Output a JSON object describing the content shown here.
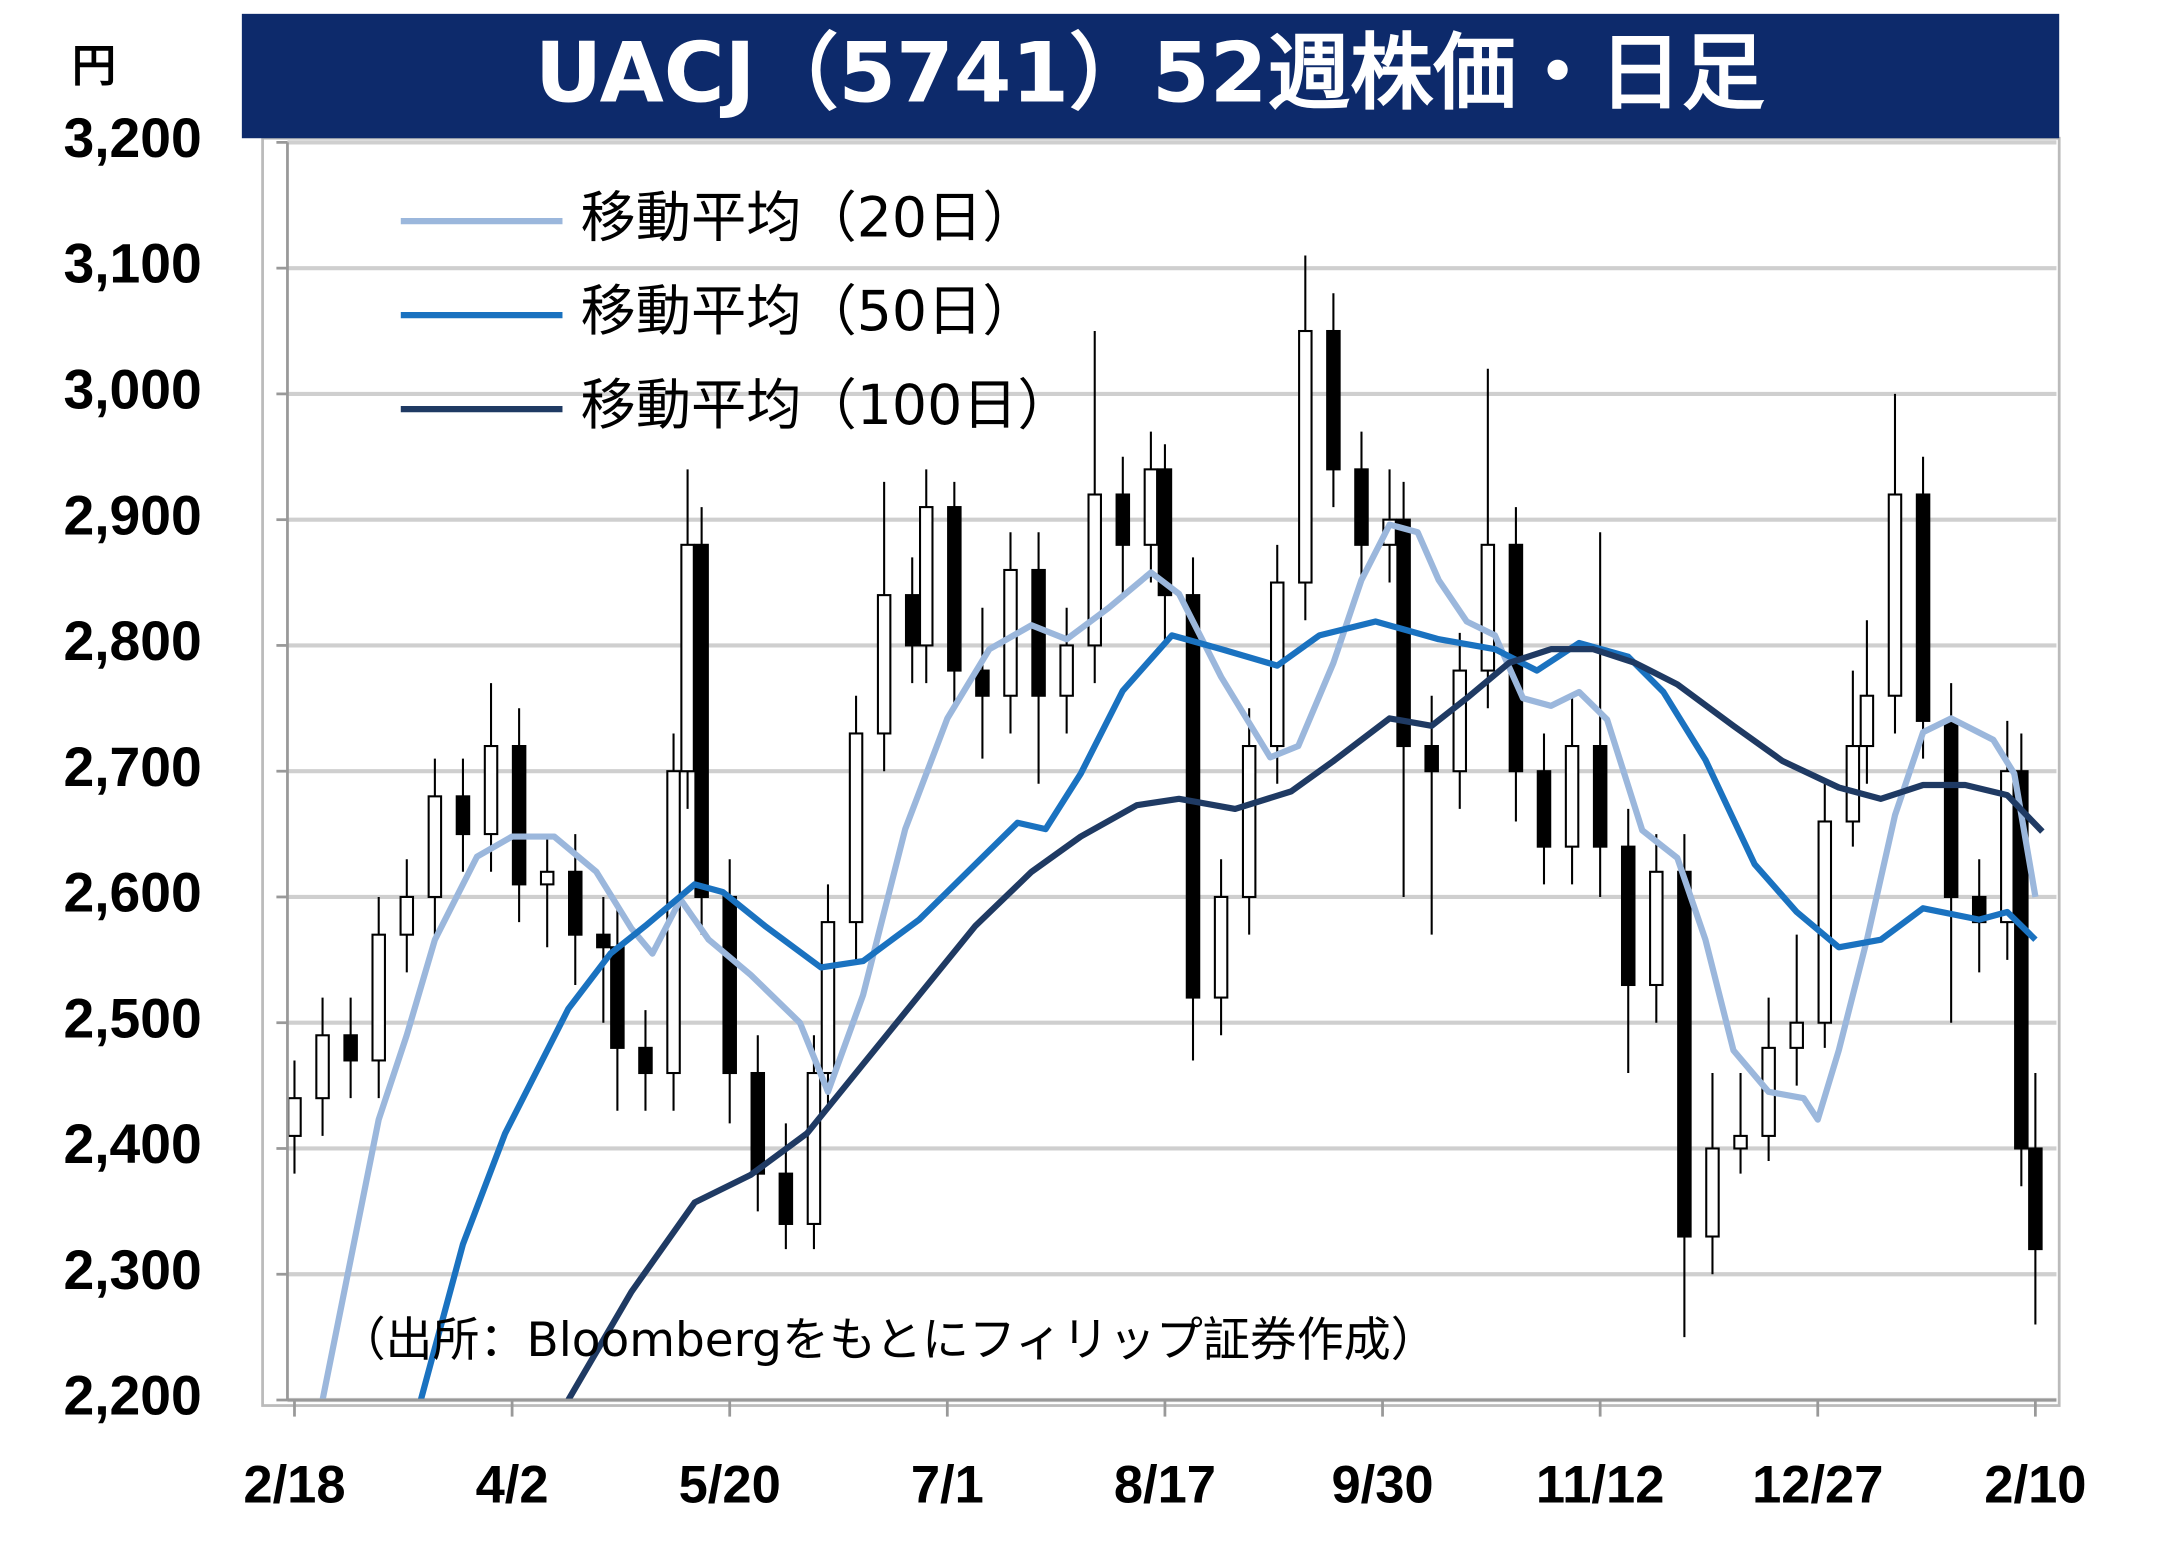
{
  "chart_data": {
    "type": "candlestick",
    "title": "UACJ（5741）52週株価・日足",
    "y_unit": "円",
    "note": "（出所：Bloombergをもとにフィリップ証券作成）",
    "xlim": [
      -1,
      251
    ],
    "ylim": [
      2200,
      3200
    ],
    "xticks": [
      {
        "value": 0,
        "label": "2/18"
      },
      {
        "value": 31,
        "label": "4/2"
      },
      {
        "value": 62,
        "label": "5/20"
      },
      {
        "value": 93,
        "label": "7/1"
      },
      {
        "value": 124,
        "label": "8/17"
      },
      {
        "value": 155,
        "label": "9/30"
      },
      {
        "value": 186,
        "label": "11/12"
      },
      {
        "value": 217,
        "label": "12/27"
      },
      {
        "value": 248,
        "label": "2/10"
      }
    ],
    "yticks": [
      {
        "value": 2200,
        "label": "2,200"
      },
      {
        "value": 2300,
        "label": "2,300"
      },
      {
        "value": 2400,
        "label": "2,400"
      },
      {
        "value": 2500,
        "label": "2,500"
      },
      {
        "value": 2600,
        "label": "2,600"
      },
      {
        "value": 2700,
        "label": "2,700"
      },
      {
        "value": 2800,
        "label": "2,800"
      },
      {
        "value": 2900,
        "label": "2,900"
      },
      {
        "value": 3000,
        "label": "3,000"
      },
      {
        "value": 3100,
        "label": "3,100"
      },
      {
        "value": 3200,
        "label": "3,200"
      }
    ],
    "grid": true,
    "candles": {
      "up_color": "#ffffff",
      "down_color": "#000000",
      "x": [
        0,
        4,
        8,
        12,
        16,
        20,
        24,
        28,
        32,
        36,
        40,
        44,
        46,
        50,
        54,
        56,
        58,
        62,
        66,
        70,
        74,
        76,
        80,
        84,
        88,
        90,
        94,
        98,
        102,
        106,
        110,
        114,
        118,
        122,
        124,
        128,
        132,
        136,
        140,
        144,
        148,
        152,
        156,
        158,
        162,
        166,
        170,
        174,
        178,
        182,
        186,
        190,
        194,
        198,
        202,
        206,
        210,
        214,
        218,
        222,
        224,
        228,
        232,
        236,
        240,
        244,
        246,
        248
      ],
      "open": [
        2410,
        2440,
        2490,
        2470,
        2570,
        2600,
        2680,
        2650,
        2720,
        2610,
        2620,
        2570,
        2560,
        2480,
        2460,
        2700,
        2880,
        2600,
        2460,
        2380,
        2340,
        2460,
        2580,
        2730,
        2840,
        2800,
        2910,
        2780,
        2760,
        2860,
        2760,
        2800,
        2920,
        2880,
        2940,
        2840,
        2520,
        2600,
        2720,
        2850,
        3050,
        2940,
        2880,
        2900,
        2720,
        2700,
        2780,
        2880,
        2700,
        2640,
        2720,
        2640,
        2530,
        2620,
        2330,
        2400,
        2410,
        2480,
        2500,
        2660,
        2720,
        2760,
        2920,
        2740,
        2600,
        2580,
        2700,
        2400
      ],
      "high": [
        2470,
        2520,
        2520,
        2600,
        2630,
        2710,
        2710,
        2770,
        2750,
        2650,
        2650,
        2600,
        2590,
        2510,
        2730,
        2940,
        2910,
        2630,
        2490,
        2420,
        2490,
        2610,
        2760,
        2930,
        2870,
        2940,
        2930,
        2830,
        2890,
        2890,
        2830,
        3050,
        2950,
        2970,
        2960,
        2870,
        2630,
        2750,
        2880,
        3110,
        3080,
        2970,
        2940,
        2930,
        2760,
        2810,
        3020,
        2910,
        2730,
        2760,
        2890,
        2670,
        2650,
        2650,
        2460,
        2460,
        2520,
        2570,
        2690,
        2780,
        2820,
        3000,
        2950,
        2770,
        2630,
        2740,
        2730,
        2460
      ],
      "low": [
        2380,
        2410,
        2440,
        2440,
        2540,
        2570,
        2620,
        2620,
        2580,
        2560,
        2530,
        2500,
        2430,
        2430,
        2430,
        2670,
        2570,
        2420,
        2350,
        2320,
        2320,
        2430,
        2550,
        2700,
        2770,
        2770,
        2750,
        2710,
        2730,
        2690,
        2730,
        2770,
        2840,
        2850,
        2800,
        2470,
        2490,
        2570,
        2690,
        2820,
        2910,
        2850,
        2850,
        2600,
        2570,
        2670,
        2750,
        2660,
        2610,
        2610,
        2600,
        2460,
        2500,
        2250,
        2300,
        2380,
        2390,
        2450,
        2480,
        2640,
        2690,
        2730,
        2710,
        2500,
        2540,
        2550,
        2370,
        2260
      ],
      "close": [
        2440,
        2490,
        2470,
        2570,
        2600,
        2680,
        2650,
        2720,
        2610,
        2620,
        2570,
        2560,
        2480,
        2460,
        2700,
        2880,
        2600,
        2460,
        2380,
        2340,
        2460,
        2580,
        2730,
        2840,
        2800,
        2910,
        2780,
        2760,
        2860,
        2760,
        2800,
        2920,
        2880,
        2940,
        2840,
        2520,
        2600,
        2720,
        2850,
        3050,
        2940,
        2880,
        2900,
        2720,
        2700,
        2780,
        2880,
        2700,
        2640,
        2720,
        2640,
        2530,
        2620,
        2330,
        2400,
        2410,
        2480,
        2500,
        2660,
        2720,
        2760,
        2920,
        2740,
        2600,
        2580,
        2700,
        2400,
        2320
      ]
    },
    "legend": "top-left",
    "series": [
      {
        "name": "移動平均（20日）",
        "color": "#9bb7dc",
        "x": [
          4,
          12,
          16,
          20,
          26,
          31,
          37,
          43,
          48,
          51,
          55,
          59,
          65,
          72,
          76,
          81,
          87,
          93,
          99,
          105,
          110,
          116,
          122,
          126,
          132,
          139,
          143,
          148,
          152,
          156,
          160,
          163,
          167,
          171,
          175,
          179,
          183,
          187,
          192,
          197,
          201,
          205,
          210,
          215,
          217,
          220,
          224,
          228,
          232,
          236,
          242,
          245,
          248
        ],
        "values": [
          2200,
          2423,
          2490,
          2566,
          2632,
          2648,
          2648,
          2620,
          2575,
          2555,
          2598,
          2566,
          2538,
          2500,
          2445,
          2522,
          2654,
          2742,
          2797,
          2816,
          2805,
          2830,
          2858,
          2841,
          2775,
          2711,
          2720,
          2786,
          2852,
          2896,
          2890,
          2852,
          2819,
          2808,
          2758,
          2752,
          2763,
          2741,
          2653,
          2631,
          2566,
          2478,
          2445,
          2440,
          2423,
          2478,
          2566,
          2665,
          2731,
          2742,
          2725,
          2698,
          2600
        ]
      },
      {
        "name": "移動平均（50日）",
        "color": "#1a72c0",
        "x": [
          18,
          24,
          30,
          39,
          45,
          50,
          57,
          61,
          67,
          75,
          81,
          89,
          97,
          103,
          107,
          112,
          118,
          125,
          132,
          140,
          146,
          154,
          163,
          171,
          177,
          183,
          190,
          195,
          201,
          208,
          214,
          220,
          226,
          232,
          240,
          244,
          248
        ],
        "values": [
          2200,
          2324,
          2412,
          2511,
          2555,
          2577,
          2610,
          2604,
          2577,
          2544,
          2549,
          2582,
          2626,
          2659,
          2654,
          2698,
          2764,
          2808,
          2797,
          2784,
          2808,
          2819,
          2805,
          2797,
          2780,
          2802,
          2791,
          2763,
          2709,
          2626,
          2588,
          2560,
          2566,
          2591,
          2582,
          2588,
          2566
        ]
      },
      {
        "name": "移動平均（100日）",
        "color": "#1f3a63",
        "x": [
          39,
          48,
          57,
          65,
          73,
          81,
          89,
          97,
          105,
          112,
          120,
          126,
          134,
          142,
          148,
          156,
          162,
          167,
          173,
          179,
          185,
          191,
          197,
          205,
          212,
          220,
          226,
          232,
          238,
          244,
          249
        ],
        "values": [
          2200,
          2286,
          2357,
          2379,
          2412,
          2467,
          2522,
          2577,
          2620,
          2648,
          2673,
          2678,
          2670,
          2684,
          2708,
          2742,
          2736,
          2758,
          2786,
          2797,
          2797,
          2786,
          2769,
          2736,
          2708,
          2687,
          2678,
          2689,
          2689,
          2681,
          2652
        ]
      }
    ]
  }
}
